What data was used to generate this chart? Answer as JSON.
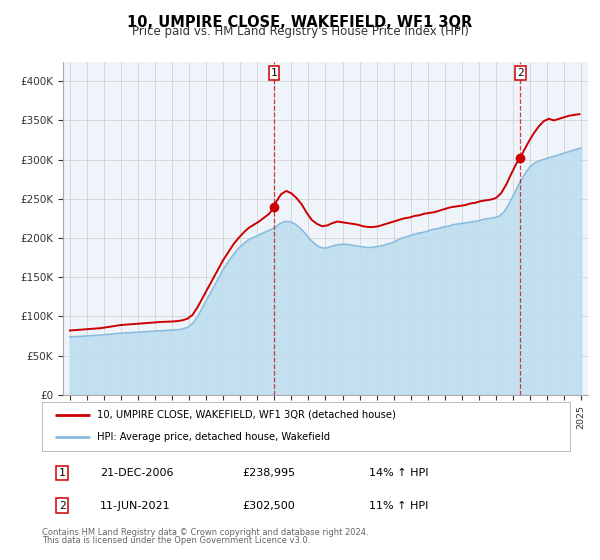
{
  "title": "10, UMPIRE CLOSE, WAKEFIELD, WF1 3QR",
  "subtitle": "Price paid vs. HM Land Registry's House Price Index (HPI)",
  "ylabel_ticks": [
    "£0",
    "£50K",
    "£100K",
    "£150K",
    "£200K",
    "£250K",
    "£300K",
    "£350K",
    "£400K"
  ],
  "ytick_values": [
    0,
    50000,
    100000,
    150000,
    200000,
    250000,
    300000,
    350000,
    400000
  ],
  "ylim": [
    0,
    425000
  ],
  "red_color": "#cc0000",
  "blue_color": "#88bbdd",
  "blue_fill_color": "#bbddee",
  "plot_bg": "#eef4fa",
  "grid_color": "#cccccc",
  "marker1_x": 2006.972,
  "marker1_value": 238995,
  "marker2_x": 2021.44,
  "marker2_value": 302500,
  "legend_label_red": "10, UMPIRE CLOSE, WAKEFIELD, WF1 3QR (detached house)",
  "legend_label_blue": "HPI: Average price, detached house, Wakefield",
  "annotation1_date": "21-DEC-2006",
  "annotation1_price": "£238,995",
  "annotation1_hpi": "14% ↑ HPI",
  "annotation2_date": "11-JUN-2021",
  "annotation2_price": "£302,500",
  "annotation2_hpi": "11% ↑ HPI",
  "footer_line1": "Contains HM Land Registry data © Crown copyright and database right 2024.",
  "footer_line2": "This data is licensed under the Open Government Licence v3.0.",
  "hpi_red_data": {
    "x": [
      1995.0,
      1995.3,
      1995.6,
      1995.9,
      1996.2,
      1996.5,
      1996.8,
      1997.1,
      1997.4,
      1997.7,
      1998.0,
      1998.3,
      1998.6,
      1998.9,
      1999.2,
      1999.5,
      1999.8,
      2000.1,
      2000.4,
      2000.7,
      2001.0,
      2001.3,
      2001.6,
      2001.9,
      2002.2,
      2002.5,
      2002.8,
      2003.1,
      2003.4,
      2003.7,
      2004.0,
      2004.3,
      2004.6,
      2004.9,
      2005.2,
      2005.5,
      2005.8,
      2006.1,
      2006.4,
      2006.7,
      2006.972,
      2007.1,
      2007.4,
      2007.7,
      2008.0,
      2008.3,
      2008.6,
      2008.9,
      2009.2,
      2009.5,
      2009.8,
      2010.1,
      2010.4,
      2010.7,
      2011.0,
      2011.3,
      2011.6,
      2011.9,
      2012.2,
      2012.5,
      2012.8,
      2013.1,
      2013.4,
      2013.7,
      2014.0,
      2014.3,
      2014.6,
      2014.9,
      2015.2,
      2015.5,
      2015.8,
      2016.1,
      2016.4,
      2016.7,
      2017.0,
      2017.3,
      2017.6,
      2017.9,
      2018.2,
      2018.5,
      2018.8,
      2019.1,
      2019.4,
      2019.7,
      2020.0,
      2020.3,
      2020.6,
      2020.9,
      2021.2,
      2021.44,
      2021.6,
      2021.9,
      2022.2,
      2022.5,
      2022.8,
      2023.1,
      2023.4,
      2023.7,
      2024.0,
      2024.3,
      2024.6,
      2024.9
    ],
    "y": [
      82000,
      82500,
      83000,
      83500,
      84000,
      84500,
      85000,
      86000,
      87000,
      88000,
      89000,
      89500,
      90000,
      90500,
      91000,
      91500,
      92000,
      92500,
      93000,
      93200,
      93500,
      94000,
      95000,
      97000,
      102000,
      112000,
      124000,
      136000,
      148000,
      160000,
      172000,
      182000,
      192000,
      200000,
      207000,
      213000,
      217000,
      221000,
      226000,
      231000,
      238995,
      246000,
      256000,
      260000,
      257000,
      251000,
      243000,
      232000,
      223000,
      218000,
      215000,
      216000,
      219000,
      221000,
      220000,
      219000,
      218000,
      217000,
      215000,
      214000,
      214000,
      215000,
      217000,
      219000,
      221000,
      223000,
      225000,
      226000,
      228000,
      229000,
      231000,
      232000,
      233000,
      235000,
      237000,
      239000,
      240000,
      241000,
      242000,
      244000,
      245000,
      247000,
      248000,
      249000,
      251000,
      257000,
      268000,
      282000,
      295000,
      302500,
      310000,
      322000,
      333000,
      342000,
      349000,
      352000,
      350000,
      352000,
      354000,
      356000,
      357000,
      358000
    ]
  },
  "hpi_blue_data": {
    "x": [
      1995.0,
      1995.3,
      1995.6,
      1995.9,
      1996.2,
      1996.5,
      1996.8,
      1997.1,
      1997.4,
      1997.7,
      1998.0,
      1998.3,
      1998.6,
      1998.9,
      1999.2,
      1999.5,
      1999.8,
      2000.1,
      2000.4,
      2000.7,
      2001.0,
      2001.3,
      2001.6,
      2001.9,
      2002.2,
      2002.5,
      2002.8,
      2003.1,
      2003.4,
      2003.7,
      2004.0,
      2004.3,
      2004.6,
      2004.9,
      2005.2,
      2005.5,
      2005.8,
      2006.1,
      2006.4,
      2006.7,
      2007.0,
      2007.3,
      2007.6,
      2007.9,
      2008.2,
      2008.5,
      2008.8,
      2009.1,
      2009.4,
      2009.7,
      2010.0,
      2010.3,
      2010.6,
      2010.9,
      2011.2,
      2011.5,
      2011.8,
      2012.1,
      2012.4,
      2012.7,
      2013.0,
      2013.3,
      2013.6,
      2013.9,
      2014.2,
      2014.5,
      2014.8,
      2015.1,
      2015.4,
      2015.7,
      2016.0,
      2016.3,
      2016.6,
      2016.9,
      2017.2,
      2017.5,
      2017.8,
      2018.1,
      2018.4,
      2018.7,
      2019.0,
      2019.3,
      2019.6,
      2019.9,
      2020.2,
      2020.5,
      2020.8,
      2021.1,
      2021.4,
      2021.7,
      2022.0,
      2022.3,
      2022.6,
      2022.9,
      2023.2,
      2023.5,
      2023.8,
      2024.1,
      2024.4,
      2024.7,
      2025.0
    ],
    "y": [
      74000,
      74300,
      74600,
      75000,
      75400,
      75800,
      76200,
      76800,
      77400,
      78000,
      78600,
      79000,
      79400,
      79800,
      80200,
      80600,
      81000,
      81400,
      81800,
      82200,
      82600,
      83000,
      84000,
      86000,
      91000,
      100000,
      112000,
      124000,
      136000,
      148000,
      160000,
      170000,
      179000,
      187000,
      193000,
      198000,
      201000,
      204000,
      207000,
      210000,
      213000,
      218000,
      221000,
      221000,
      218000,
      213000,
      206000,
      198000,
      192000,
      188000,
      187000,
      189000,
      191000,
      192000,
      192000,
      191000,
      190000,
      189000,
      188000,
      188000,
      189000,
      190000,
      192000,
      194000,
      197000,
      200000,
      202000,
      204000,
      206000,
      207000,
      209000,
      211000,
      212000,
      214000,
      215000,
      217000,
      218000,
      219000,
      220000,
      221000,
      222000,
      224000,
      225000,
      226000,
      228000,
      234000,
      245000,
      258000,
      271000,
      282000,
      291000,
      296000,
      299000,
      301000,
      303000,
      305000,
      307000,
      309000,
      311000,
      313000,
      315000
    ]
  }
}
